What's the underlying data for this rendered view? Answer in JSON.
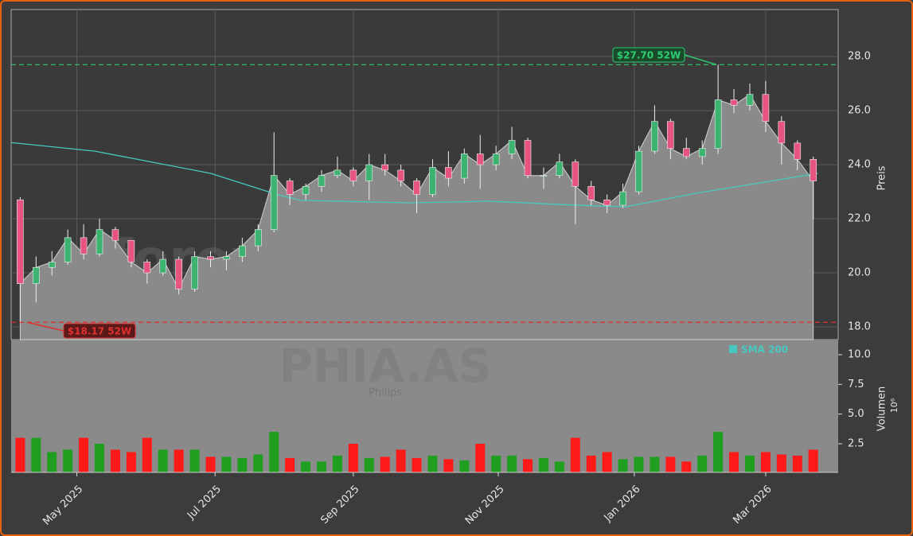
{
  "chart_data": [
    {
      "type": "candlestick",
      "ylabel": "Preis",
      "xlim": [
        0,
        365
      ],
      "ylim": [
        17.53,
        29.74
      ],
      "yticks": [
        {
          "value": 18,
          "label": "18.0"
        },
        {
          "value": 20,
          "label": "20.0"
        },
        {
          "value": 22,
          "label": "22.0"
        },
        {
          "value": 24,
          "label": "24.0"
        },
        {
          "value": 26,
          "label": "26.0"
        },
        {
          "value": 28,
          "label": "28.0"
        }
      ],
      "xticks": [
        {
          "value": 29,
          "label": "May 2025"
        },
        {
          "value": 90,
          "label": "Jul 2025"
        },
        {
          "value": 151,
          "label": "Sep 2025"
        },
        {
          "value": 215,
          "label": "Nov 2025"
        },
        {
          "value": 275,
          "label": "Jan 2026"
        },
        {
          "value": 333,
          "label": "Mar 2026"
        }
      ],
      "grid": true,
      "up_color": "#3cb371",
      "down_color": "#e75480",
      "area_color": "#8a8a8a",
      "x": [
        4,
        11,
        18,
        25,
        32,
        39,
        46,
        53,
        60,
        67,
        74,
        81,
        88,
        95,
        102,
        109,
        116,
        123,
        130,
        137,
        144,
        151,
        158,
        165,
        172,
        179,
        186,
        193,
        200,
        207,
        214,
        221,
        228,
        235,
        242,
        249,
        256,
        263,
        270,
        277,
        284,
        291,
        298,
        305,
        312,
        319,
        326,
        333,
        340,
        347,
        354
      ],
      "open": [
        22.7,
        19.6,
        20.2,
        20.4,
        21.3,
        20.7,
        21.6,
        21.2,
        20.4,
        20.0,
        20.5,
        19.4,
        20.6,
        20.5,
        20.6,
        21.0,
        21.6,
        23.4,
        22.9,
        23.2,
        23.6,
        23.8,
        23.4,
        24.0,
        23.8,
        23.4,
        22.9,
        23.9,
        23.5,
        24.4,
        24.0,
        24.4,
        24.9,
        23.6,
        23.6,
        24.1,
        23.2,
        22.7,
        22.5,
        23.0,
        24.5,
        25.6,
        24.6,
        24.3,
        24.6,
        26.4,
        26.2,
        26.6,
        25.6,
        24.8,
        24.2
      ],
      "high": [
        22.8,
        20.6,
        20.8,
        21.6,
        21.8,
        22.0,
        21.7,
        21.2,
        20.5,
        20.8,
        20.6,
        20.8,
        20.8,
        20.8,
        21.3,
        21.8,
        25.2,
        23.5,
        23.3,
        23.8,
        24.3,
        23.9,
        24.4,
        24.4,
        24.0,
        23.5,
        24.2,
        24.5,
        24.6,
        25.1,
        24.7,
        25.4,
        25.0,
        23.9,
        24.4,
        24.2,
        23.4,
        22.9,
        23.3,
        24.7,
        26.2,
        25.7,
        25.0,
        24.9,
        27.7,
        26.8,
        27.0,
        27.1,
        25.8,
        24.9,
        24.3
      ],
      "low": [
        18.17,
        18.9,
        19.9,
        20.3,
        20.5,
        20.6,
        20.9,
        20.2,
        19.6,
        19.9,
        19.2,
        19.3,
        20.2,
        20.1,
        20.4,
        20.8,
        21.5,
        22.5,
        22.7,
        23.0,
        23.5,
        23.2,
        22.7,
        23.6,
        23.2,
        22.2,
        22.8,
        23.2,
        23.3,
        23.1,
        23.8,
        24.2,
        23.5,
        23.1,
        23.5,
        21.8,
        22.5,
        22.2,
        22.4,
        22.9,
        24.4,
        24.2,
        24.2,
        24.0,
        24.4,
        25.9,
        26.0,
        25.2,
        24.0,
        23.8,
        22.0
      ],
      "close": [
        19.6,
        20.2,
        20.4,
        21.3,
        20.7,
        21.6,
        21.2,
        20.4,
        20.0,
        20.5,
        19.4,
        20.6,
        20.5,
        20.6,
        21.0,
        21.6,
        23.6,
        22.9,
        23.2,
        23.6,
        23.8,
        23.4,
        24.0,
        23.8,
        23.4,
        22.9,
        23.9,
        23.5,
        24.4,
        24.0,
        24.4,
        24.9,
        23.6,
        23.6,
        24.1,
        23.2,
        22.7,
        22.5,
        23.0,
        24.5,
        25.6,
        24.6,
        24.3,
        24.6,
        26.4,
        26.2,
        26.6,
        25.6,
        24.8,
        24.2,
        23.4
      ],
      "sma": {
        "name": "SMA 200",
        "color": "#48c9c0",
        "x": [
          0,
          37,
          88,
          118,
          128,
          176,
          211,
          250,
          271,
          302,
          330,
          356
        ],
        "values": [
          24.82,
          24.5,
          23.68,
          22.88,
          22.68,
          22.59,
          22.65,
          22.5,
          22.44,
          22.94,
          23.32,
          23.68
        ]
      },
      "reference_lines": [
        {
          "value": 27.7,
          "label": "$27.70 52W",
          "color": "#2ecc71"
        },
        {
          "value": 18.17,
          "label": "$18.17 52W",
          "color": "#e03030"
        }
      ],
      "watermark": {
        "site": "forexsignale.trade",
        "ticker": "PHIA.AS",
        "name": "Philips"
      }
    },
    {
      "type": "bar",
      "ylabel": "Volumen",
      "yscale_label": "10⁶",
      "ylim": [
        0.09,
        11.27
      ],
      "yticks": [
        2.5,
        {
          "value": 5,
          "label": "5.0"
        },
        7.5,
        {
          "value": 10,
          "label": "10.0"
        }
      ],
      "up_color": "#1f9e1f",
      "down_color": "#ff1a1a",
      "values": [
        3.0,
        3.0,
        1.8,
        2.0,
        3.0,
        2.5,
        2.0,
        1.8,
        3.0,
        2.0,
        2.0,
        2.0,
        1.4,
        1.4,
        1.3,
        1.6,
        3.5,
        1.3,
        1.0,
        1.0,
        1.5,
        2.5,
        1.3,
        1.4,
        2.0,
        1.3,
        1.5,
        1.2,
        1.1,
        2.5,
        1.5,
        1.5,
        1.2,
        1.3,
        1.0,
        3.0,
        1.5,
        1.8,
        1.2,
        1.4,
        1.4,
        1.4,
        1.0,
        1.5,
        3.5,
        1.8,
        1.5,
        1.8,
        1.6,
        1.5,
        2.0
      ]
    }
  ]
}
